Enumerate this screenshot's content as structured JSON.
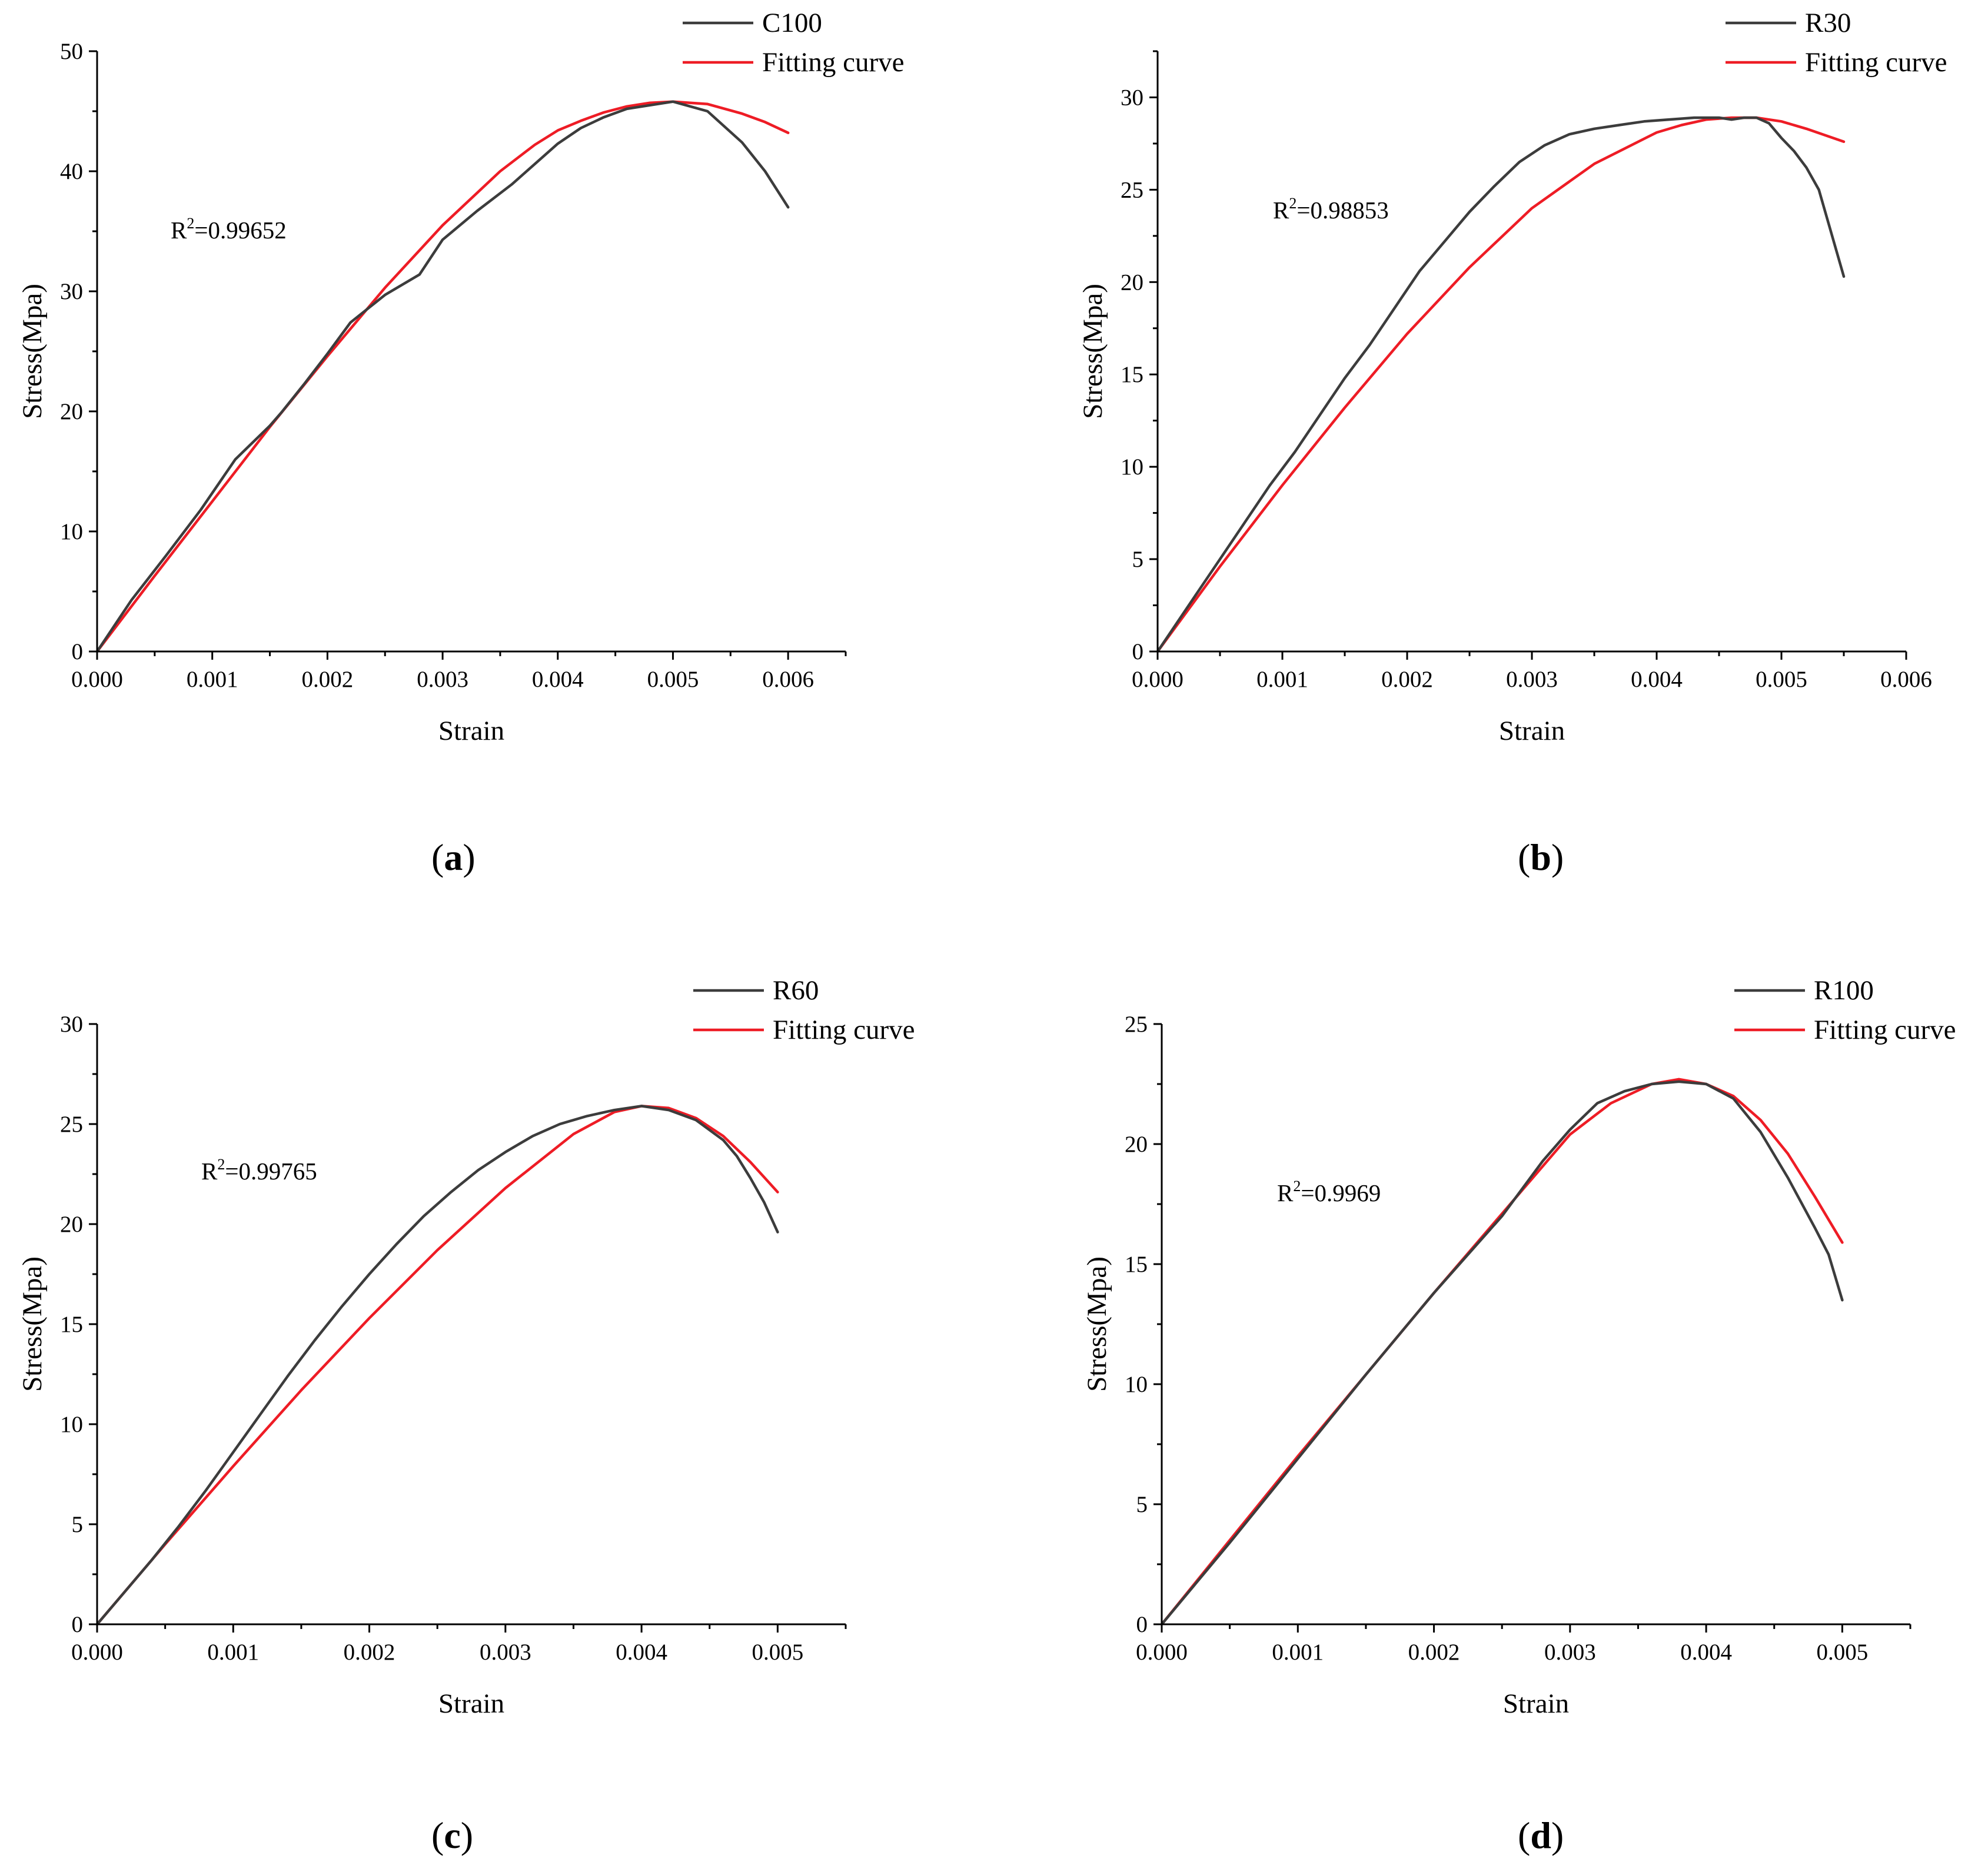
{
  "figure": {
    "panels": [
      {
        "caption_letter": "a",
        "xlabel": "Strain",
        "ylabel": "Stress(Mpa)",
        "r2_label": "R",
        "r2_exp": "2",
        "r2_value": "=0.99652"
      },
      {
        "caption_letter": "b",
        "xlabel": "Strain",
        "ylabel": "Stress(Mpa)",
        "r2_label": "R",
        "r2_exp": "2",
        "r2_value": "=0.98853"
      },
      {
        "caption_letter": "c",
        "xlabel": "Strain",
        "ylabel": "Stress(Mpa)",
        "r2_label": "R",
        "r2_exp": "2",
        "r2_value": "=0.99765"
      },
      {
        "caption_letter": "d",
        "xlabel": "Strain",
        "ylabel": "Stress(Mpa)",
        "r2_label": "R",
        "r2_exp": "2",
        "r2_value": "=0.9969"
      }
    ]
  },
  "colors": {
    "measured": "#3c3c3c",
    "fitting": "#ee1c25",
    "axis": "#000000"
  },
  "chart_data": [
    {
      "type": "line",
      "title": "(a)",
      "xlabel": "Strain",
      "ylabel": "Stress(Mpa)",
      "xlim": [
        0,
        0.0065
      ],
      "ylim": [
        0,
        50
      ],
      "xticks": [
        "0.000",
        "0.001",
        "0.002",
        "0.003",
        "0.004",
        "0.005",
        "0.006"
      ],
      "yticks": [
        "0",
        "10",
        "20",
        "30",
        "40",
        "50"
      ],
      "annotation": "R2=0.99652",
      "legend": [
        "C100",
        "Fitting curve"
      ],
      "legend_position": "top-right",
      "series": [
        {
          "name": "C100",
          "x": [
            0,
            0.0003,
            0.0006,
            0.0009,
            0.0012,
            0.0015,
            0.0016,
            0.0018,
            0.002,
            0.0022,
            0.0025,
            0.0028,
            0.003,
            0.0033,
            0.0036,
            0.0038,
            0.004,
            0.0042,
            0.0044,
            0.0046,
            0.0048,
            0.005,
            0.0053,
            0.0056,
            0.0058,
            0.006
          ],
          "y": [
            0,
            4.3,
            8,
            11.8,
            16,
            18.8,
            19.9,
            22.3,
            24.8,
            27.4,
            29.7,
            31.4,
            34.3,
            36.7,
            38.9,
            40.6,
            42.3,
            43.6,
            44.5,
            45.2,
            45.5,
            45.8,
            45,
            42.4,
            40,
            37
          ]
        },
        {
          "name": "Fitting curve",
          "x": [
            0,
            0.0005,
            0.001,
            0.0015,
            0.002,
            0.0025,
            0.003,
            0.0035,
            0.0038,
            0.004,
            0.0042,
            0.0044,
            0.0046,
            0.0048,
            0.005,
            0.0053,
            0.0056,
            0.0058,
            0.006
          ],
          "y": [
            0,
            6.3,
            12.5,
            18.7,
            24.6,
            30.3,
            35.5,
            40,
            42.2,
            43.4,
            44.2,
            44.9,
            45.4,
            45.7,
            45.8,
            45.6,
            44.8,
            44.1,
            43.2
          ]
        }
      ]
    },
    {
      "type": "line",
      "title": "(b)",
      "xlabel": "Strain",
      "ylabel": "Stress(Mpa)",
      "xlim": [
        0,
        0.006
      ],
      "ylim": [
        0,
        32.5
      ],
      "xticks": [
        "0.000",
        "0.001",
        "0.002",
        "0.003",
        "0.004",
        "0.005",
        "0.006"
      ],
      "yticks": [
        "0",
        "5",
        "10",
        "15",
        "20",
        "25",
        "30"
      ],
      "annotation": "R2=0.98853",
      "legend": [
        "R30",
        "Fitting curve"
      ],
      "legend_position": "top-right",
      "series": [
        {
          "name": "R30",
          "x": [
            0,
            0.0001,
            0.0003,
            0.0005,
            0.0007,
            0.0009,
            0.0011,
            0.0013,
            0.0015,
            0.0017,
            0.0019,
            0.0021,
            0.0023,
            0.0025,
            0.0027,
            0.0029,
            0.0031,
            0.0033,
            0.0035,
            0.0037,
            0.0039,
            0.0041,
            0.0043,
            0.0045,
            0.0046,
            0.0047,
            0.0048,
            0.0049,
            0.005,
            0.0051,
            0.0052,
            0.0053,
            0.0055
          ],
          "y": [
            0,
            1,
            3,
            5,
            7,
            9,
            10.8,
            12.8,
            14.8,
            16.6,
            18.6,
            20.6,
            22.2,
            23.8,
            25.2,
            26.5,
            27.4,
            28,
            28.3,
            28.5,
            28.7,
            28.8,
            28.9,
            28.9,
            28.8,
            28.9,
            28.9,
            28.6,
            27.8,
            27.1,
            26.2,
            25,
            20.3
          ]
        },
        {
          "name": "Fitting curve",
          "x": [
            0,
            0.0005,
            0.001,
            0.0015,
            0.002,
            0.0025,
            0.003,
            0.0035,
            0.004,
            0.0042,
            0.0044,
            0.0046,
            0.0047,
            0.0048,
            0.005,
            0.0052,
            0.0055
          ],
          "y": [
            0,
            4.6,
            9,
            13.2,
            17.2,
            20.8,
            24,
            26.4,
            28.1,
            28.5,
            28.8,
            28.9,
            28.9,
            28.9,
            28.7,
            28.3,
            27.6
          ]
        }
      ]
    },
    {
      "type": "line",
      "title": "(c)",
      "xlabel": "Strain",
      "ylabel": "Stress(Mpa)",
      "xlim": [
        0,
        0.0055
      ],
      "ylim": [
        0,
        30
      ],
      "xticks": [
        "0.000",
        "0.001",
        "0.002",
        "0.003",
        "0.004",
        "0.005"
      ],
      "yticks": [
        "0",
        "5",
        "10",
        "15",
        "20",
        "25",
        "30"
      ],
      "annotation": "R2=0.99765",
      "legend": [
        "R60",
        "Fitting curve"
      ],
      "legend_position": "top-right",
      "series": [
        {
          "name": "R60",
          "x": [
            0,
            0.0002,
            0.0004,
            0.0006,
            0.0008,
            0.001,
            0.0012,
            0.0014,
            0.0016,
            0.0018,
            0.002,
            0.0022,
            0.0024,
            0.0026,
            0.0028,
            0.003,
            0.0032,
            0.0034,
            0.0036,
            0.0038,
            0.004,
            0.0042,
            0.0044,
            0.0046,
            0.0047,
            0.0048,
            0.0049,
            0.005
          ],
          "y": [
            0,
            1.6,
            3.2,
            4.9,
            6.7,
            8.6,
            10.5,
            12.4,
            14.2,
            15.9,
            17.5,
            19,
            20.4,
            21.6,
            22.7,
            23.6,
            24.4,
            25,
            25.4,
            25.7,
            25.9,
            25.7,
            25.2,
            24.2,
            23.4,
            22.3,
            21.1,
            19.6
          ]
        },
        {
          "name": "Fitting curve",
          "x": [
            0,
            0.0005,
            0.001,
            0.0015,
            0.002,
            0.0025,
            0.003,
            0.0035,
            0.0038,
            0.004,
            0.0042,
            0.0044,
            0.0046,
            0.0048,
            0.005
          ],
          "y": [
            0,
            4,
            7.9,
            11.7,
            15.3,
            18.7,
            21.8,
            24.5,
            25.6,
            25.9,
            25.8,
            25.3,
            24.4,
            23.1,
            21.6
          ]
        }
      ]
    },
    {
      "type": "line",
      "title": "(d)",
      "xlabel": "Strain",
      "ylabel": "Stress(Mpa)",
      "xlim": [
        0,
        0.0055
      ],
      "ylim": [
        0,
        25
      ],
      "xticks": [
        "0.000",
        "0.001",
        "0.002",
        "0.003",
        "0.004",
        "0.005"
      ],
      "yticks": [
        "0",
        "5",
        "10",
        "15",
        "20",
        "25"
      ],
      "annotation": "R2=0.9969",
      "legend": [
        "R100",
        "Fitting curve"
      ],
      "legend_position": "top-right",
      "series": [
        {
          "name": "R100",
          "x": [
            0,
            0.0005,
            0.001,
            0.0015,
            0.002,
            0.0025,
            0.0028,
            0.003,
            0.0032,
            0.0034,
            0.0036,
            0.0038,
            0.004,
            0.0042,
            0.0044,
            0.0046,
            0.0048,
            0.0049,
            0.005
          ],
          "y": [
            0,
            3.4,
            6.9,
            10.4,
            13.8,
            17,
            19.3,
            20.6,
            21.7,
            22.2,
            22.5,
            22.6,
            22.5,
            21.9,
            20.5,
            18.6,
            16.5,
            15.4,
            13.5
          ]
        },
        {
          "name": "Fitting curve",
          "x": [
            0,
            0.0005,
            0.001,
            0.0015,
            0.002,
            0.0025,
            0.003,
            0.0033,
            0.0036,
            0.0038,
            0.004,
            0.0042,
            0.0044,
            0.0046,
            0.0048,
            0.005
          ],
          "y": [
            0,
            3.5,
            7,
            10.4,
            13.8,
            17.1,
            20.4,
            21.7,
            22.5,
            22.7,
            22.5,
            22,
            21,
            19.6,
            17.8,
            15.9
          ]
        }
      ]
    }
  ]
}
